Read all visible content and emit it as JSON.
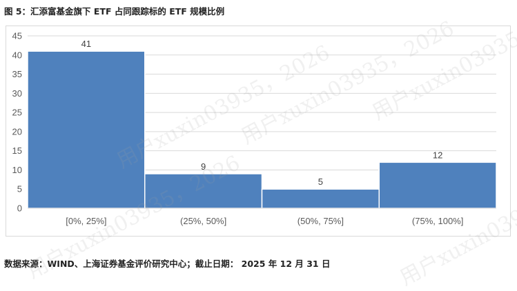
{
  "caption": "图 5：汇添富基金旗下 ETF 占同跟踪标的 ETF 规模比例",
  "source": "数据来源：WIND、上海证券基金评价研究中心；截止日期： 2025 年 12 月 31 日",
  "watermark": "用户xuxin03935，2026",
  "colors": {
    "bar": "#4f81bd",
    "bar_edge": "#ffffff",
    "grid": "#d9d9d9",
    "axis_text": "#595959"
  },
  "chart_data": {
    "type": "bar",
    "categories": [
      "[0%, 25%]",
      "(25%, 50%]",
      "(50%, 75%]",
      "(75%, 100%]"
    ],
    "values": [
      41,
      9,
      5,
      12
    ],
    "data_labels": [
      "41",
      "9",
      "5",
      "12"
    ],
    "title": "",
    "xlabel": "",
    "ylabel": "",
    "ylim": [
      0,
      45
    ],
    "yticks": [
      0,
      5,
      10,
      15,
      20,
      25,
      30,
      35,
      40,
      45
    ],
    "grid": true,
    "legend": "none"
  }
}
